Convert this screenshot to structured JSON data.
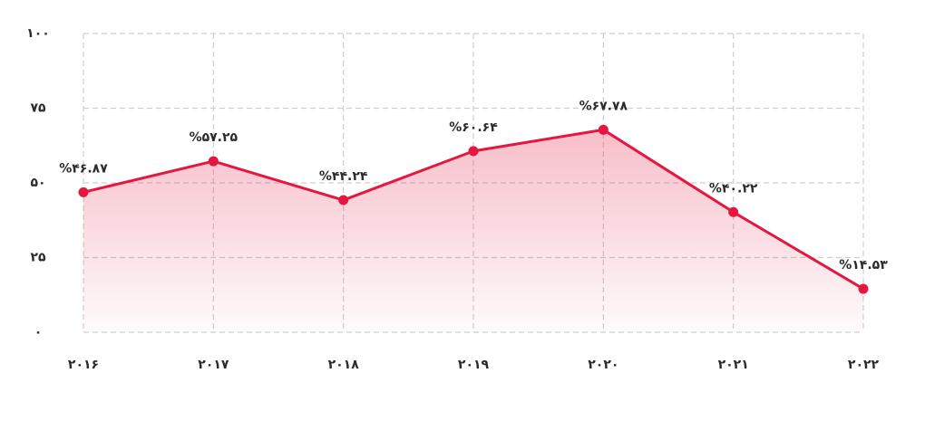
{
  "chart_data": {
    "type": "line",
    "categories": [
      "۲۰۱۶",
      "۲۰۱۷",
      "۲۰۱۸",
      "۲۰۱۹",
      "۲۰۲۰",
      "۲۰۲۱",
      "۲۰۲۲"
    ],
    "series": [
      {
        "color": "#e3173f",
        "values": [
          46.87,
          57.25,
          44.24,
          60.64,
          67.78,
          40.22,
          14.53
        ],
        "value_labels": [
          "%۴۶.۸۷",
          "%۵۷.۲۵",
          "%۴۴.۲۴",
          "%۶۰.۶۴",
          "%۶۷.۷۸",
          "%۴۰.۲۲",
          "%۱۴.۵۳"
        ]
      }
    ],
    "ylim": [
      0,
      100
    ],
    "yticks": [
      {
        "value": 0,
        "label": "۰"
      },
      {
        "value": 25,
        "label": "۲۵"
      },
      {
        "value": 50,
        "label": "۵۰"
      },
      {
        "value": 75,
        "label": "۷۵"
      },
      {
        "value": 100,
        "label": "۱۰۰"
      }
    ],
    "grid": true
  }
}
